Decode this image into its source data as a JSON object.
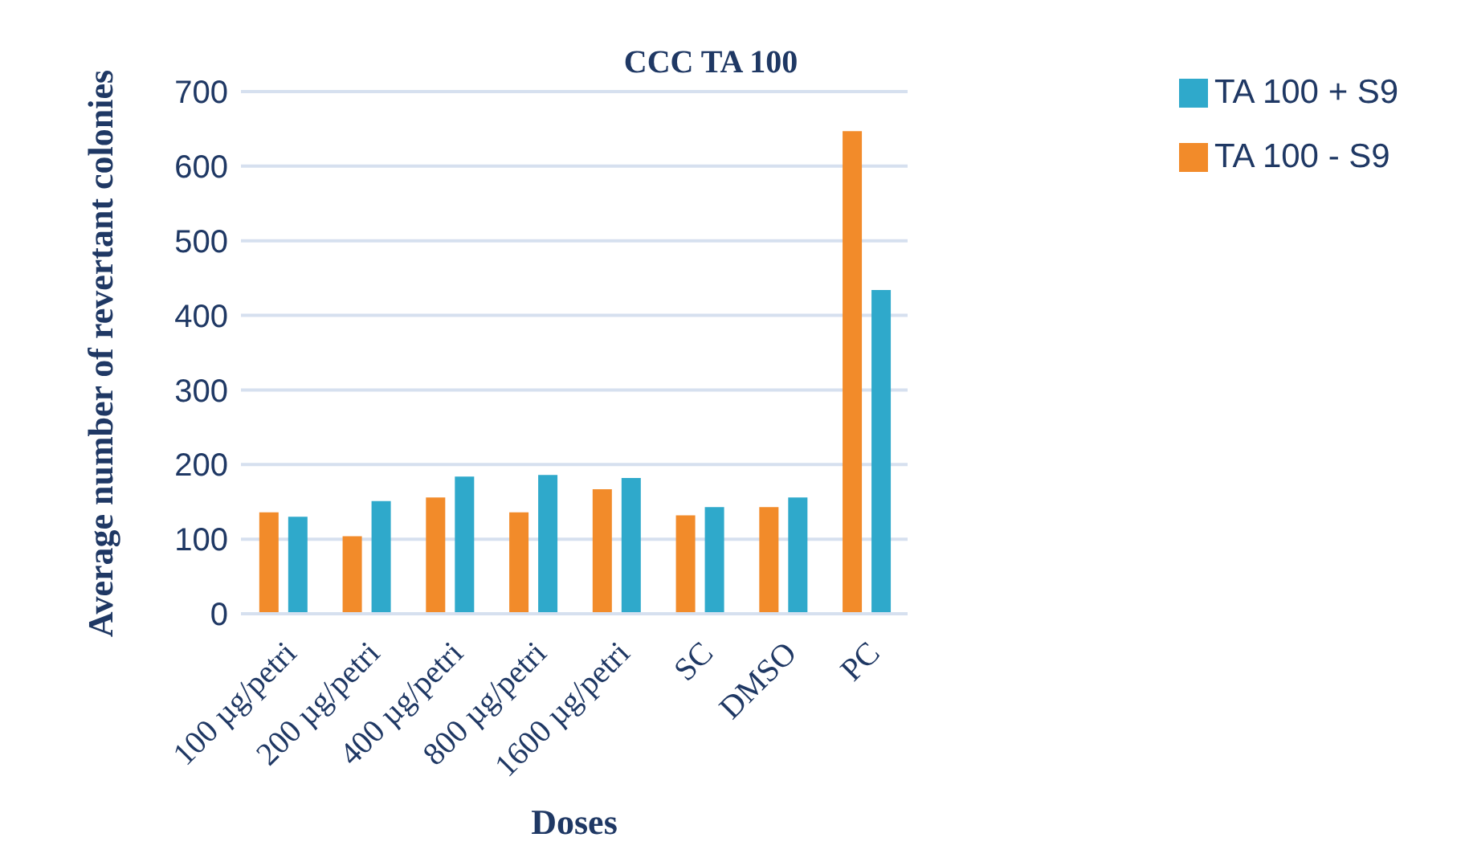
{
  "chart_data": {
    "type": "bar",
    "title": "CCC TA 100",
    "xlabel": "Doses",
    "ylabel": "Average number of revertant colonies",
    "categories": [
      "100 µg/petri",
      "200 µg/petri",
      "400 µg/petri",
      "800 µg/petri",
      "1600 µg/petri",
      "SC",
      "DMSO",
      "PC"
    ],
    "series": [
      {
        "name": "TA 100 - S9",
        "color": "#f28b2a",
        "values": [
          136,
          104,
          156,
          136,
          167,
          132,
          143,
          647
        ]
      },
      {
        "name": "TA 100 + S9",
        "color": "#2fa9cb",
        "values": [
          130,
          151,
          184,
          186,
          182,
          143,
          156,
          434
        ]
      }
    ],
    "ylim": [
      0,
      700
    ],
    "yticks": [
      0,
      100,
      200,
      300,
      400,
      500,
      600,
      700
    ],
    "grid": "y",
    "legend": "top right"
  }
}
